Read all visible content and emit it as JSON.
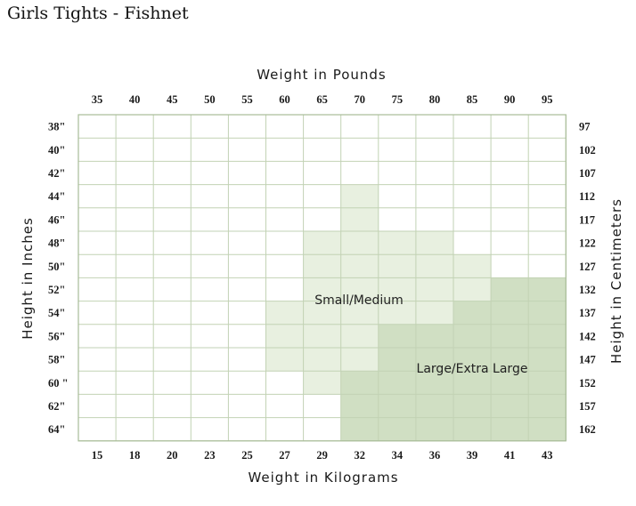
{
  "page": {
    "title": "Girls Tights - Fishnet"
  },
  "chart_data": {
    "type": "heatmap",
    "top_axis_title": "Weight in Pounds",
    "bottom_axis_title": "Weight in Kilograms",
    "left_axis_title": "Height in Inches",
    "right_axis_title": "Height in Centimeters",
    "weight_lbs": [
      "35",
      "40",
      "45",
      "50",
      "55",
      "60",
      "65",
      "70",
      "75",
      "80",
      "85",
      "90",
      "95"
    ],
    "weight_kg": [
      "15",
      "18",
      "20",
      "23",
      "25",
      "27",
      "29",
      "32",
      "34",
      "36",
      "39",
      "41",
      "43"
    ],
    "height_in": [
      "38\"",
      "40\"",
      "42\"",
      "44\"",
      "46\"",
      "48\"",
      "50\"",
      "52\"",
      "54\"",
      "56\"",
      "58\"",
      "60 \"",
      "62\"",
      "64\""
    ],
    "height_cm": [
      "97",
      "102",
      "107",
      "112",
      "117",
      "122",
      "127",
      "132",
      "137",
      "142",
      "147",
      "152",
      "157",
      "162"
    ],
    "sizes": [
      {
        "label": "Small/Medium",
        "color": "#e8f0e0",
        "cells": [
          [
            "70",
            "44\""
          ],
          [
            "70",
            "46\""
          ],
          [
            "65",
            "48\""
          ],
          [
            "70",
            "48\""
          ],
          [
            "75",
            "48\""
          ],
          [
            "80",
            "48\""
          ],
          [
            "65",
            "50\""
          ],
          [
            "70",
            "50\""
          ],
          [
            "75",
            "50\""
          ],
          [
            "80",
            "50\""
          ],
          [
            "85",
            "50\""
          ],
          [
            "65",
            "52\""
          ],
          [
            "70",
            "52\""
          ],
          [
            "75",
            "52\""
          ],
          [
            "80",
            "52\""
          ],
          [
            "85",
            "52\""
          ],
          [
            "60",
            "54\""
          ],
          [
            "65",
            "54\""
          ],
          [
            "70",
            "54\""
          ],
          [
            "75",
            "54\""
          ],
          [
            "80",
            "54\""
          ],
          [
            "60",
            "56\""
          ],
          [
            "65",
            "56\""
          ],
          [
            "70",
            "56\""
          ],
          [
            "60",
            "58\""
          ],
          [
            "65",
            "58\""
          ],
          [
            "70",
            "58\""
          ],
          [
            "65",
            "60 \""
          ]
        ]
      },
      {
        "label": "Large/Extra Large",
        "color": "#d0dfc3",
        "cells": [
          [
            "90",
            "52\""
          ],
          [
            "95",
            "52\""
          ],
          [
            "85",
            "54\""
          ],
          [
            "90",
            "54\""
          ],
          [
            "95",
            "54\""
          ],
          [
            "75",
            "56\""
          ],
          [
            "80",
            "56\""
          ],
          [
            "85",
            "56\""
          ],
          [
            "90",
            "56\""
          ],
          [
            "95",
            "56\""
          ],
          [
            "75",
            "58\""
          ],
          [
            "80",
            "58\""
          ],
          [
            "85",
            "58\""
          ],
          [
            "90",
            "58\""
          ],
          [
            "95",
            "58\""
          ],
          [
            "70",
            "60 \""
          ],
          [
            "75",
            "60 \""
          ],
          [
            "80",
            "60 \""
          ],
          [
            "85",
            "60 \""
          ],
          [
            "90",
            "60 \""
          ],
          [
            "95",
            "60 \""
          ],
          [
            "70",
            "62\""
          ],
          [
            "75",
            "62\""
          ],
          [
            "80",
            "62\""
          ],
          [
            "85",
            "62\""
          ],
          [
            "90",
            "62\""
          ],
          [
            "95",
            "62\""
          ],
          [
            "70",
            "64\""
          ],
          [
            "75",
            "64\""
          ],
          [
            "80",
            "64\""
          ],
          [
            "85",
            "64\""
          ],
          [
            "90",
            "64\""
          ],
          [
            "95",
            "64\""
          ]
        ]
      }
    ],
    "grid_line_color": "#c2d2b4",
    "border_color": "#a8bc98"
  }
}
